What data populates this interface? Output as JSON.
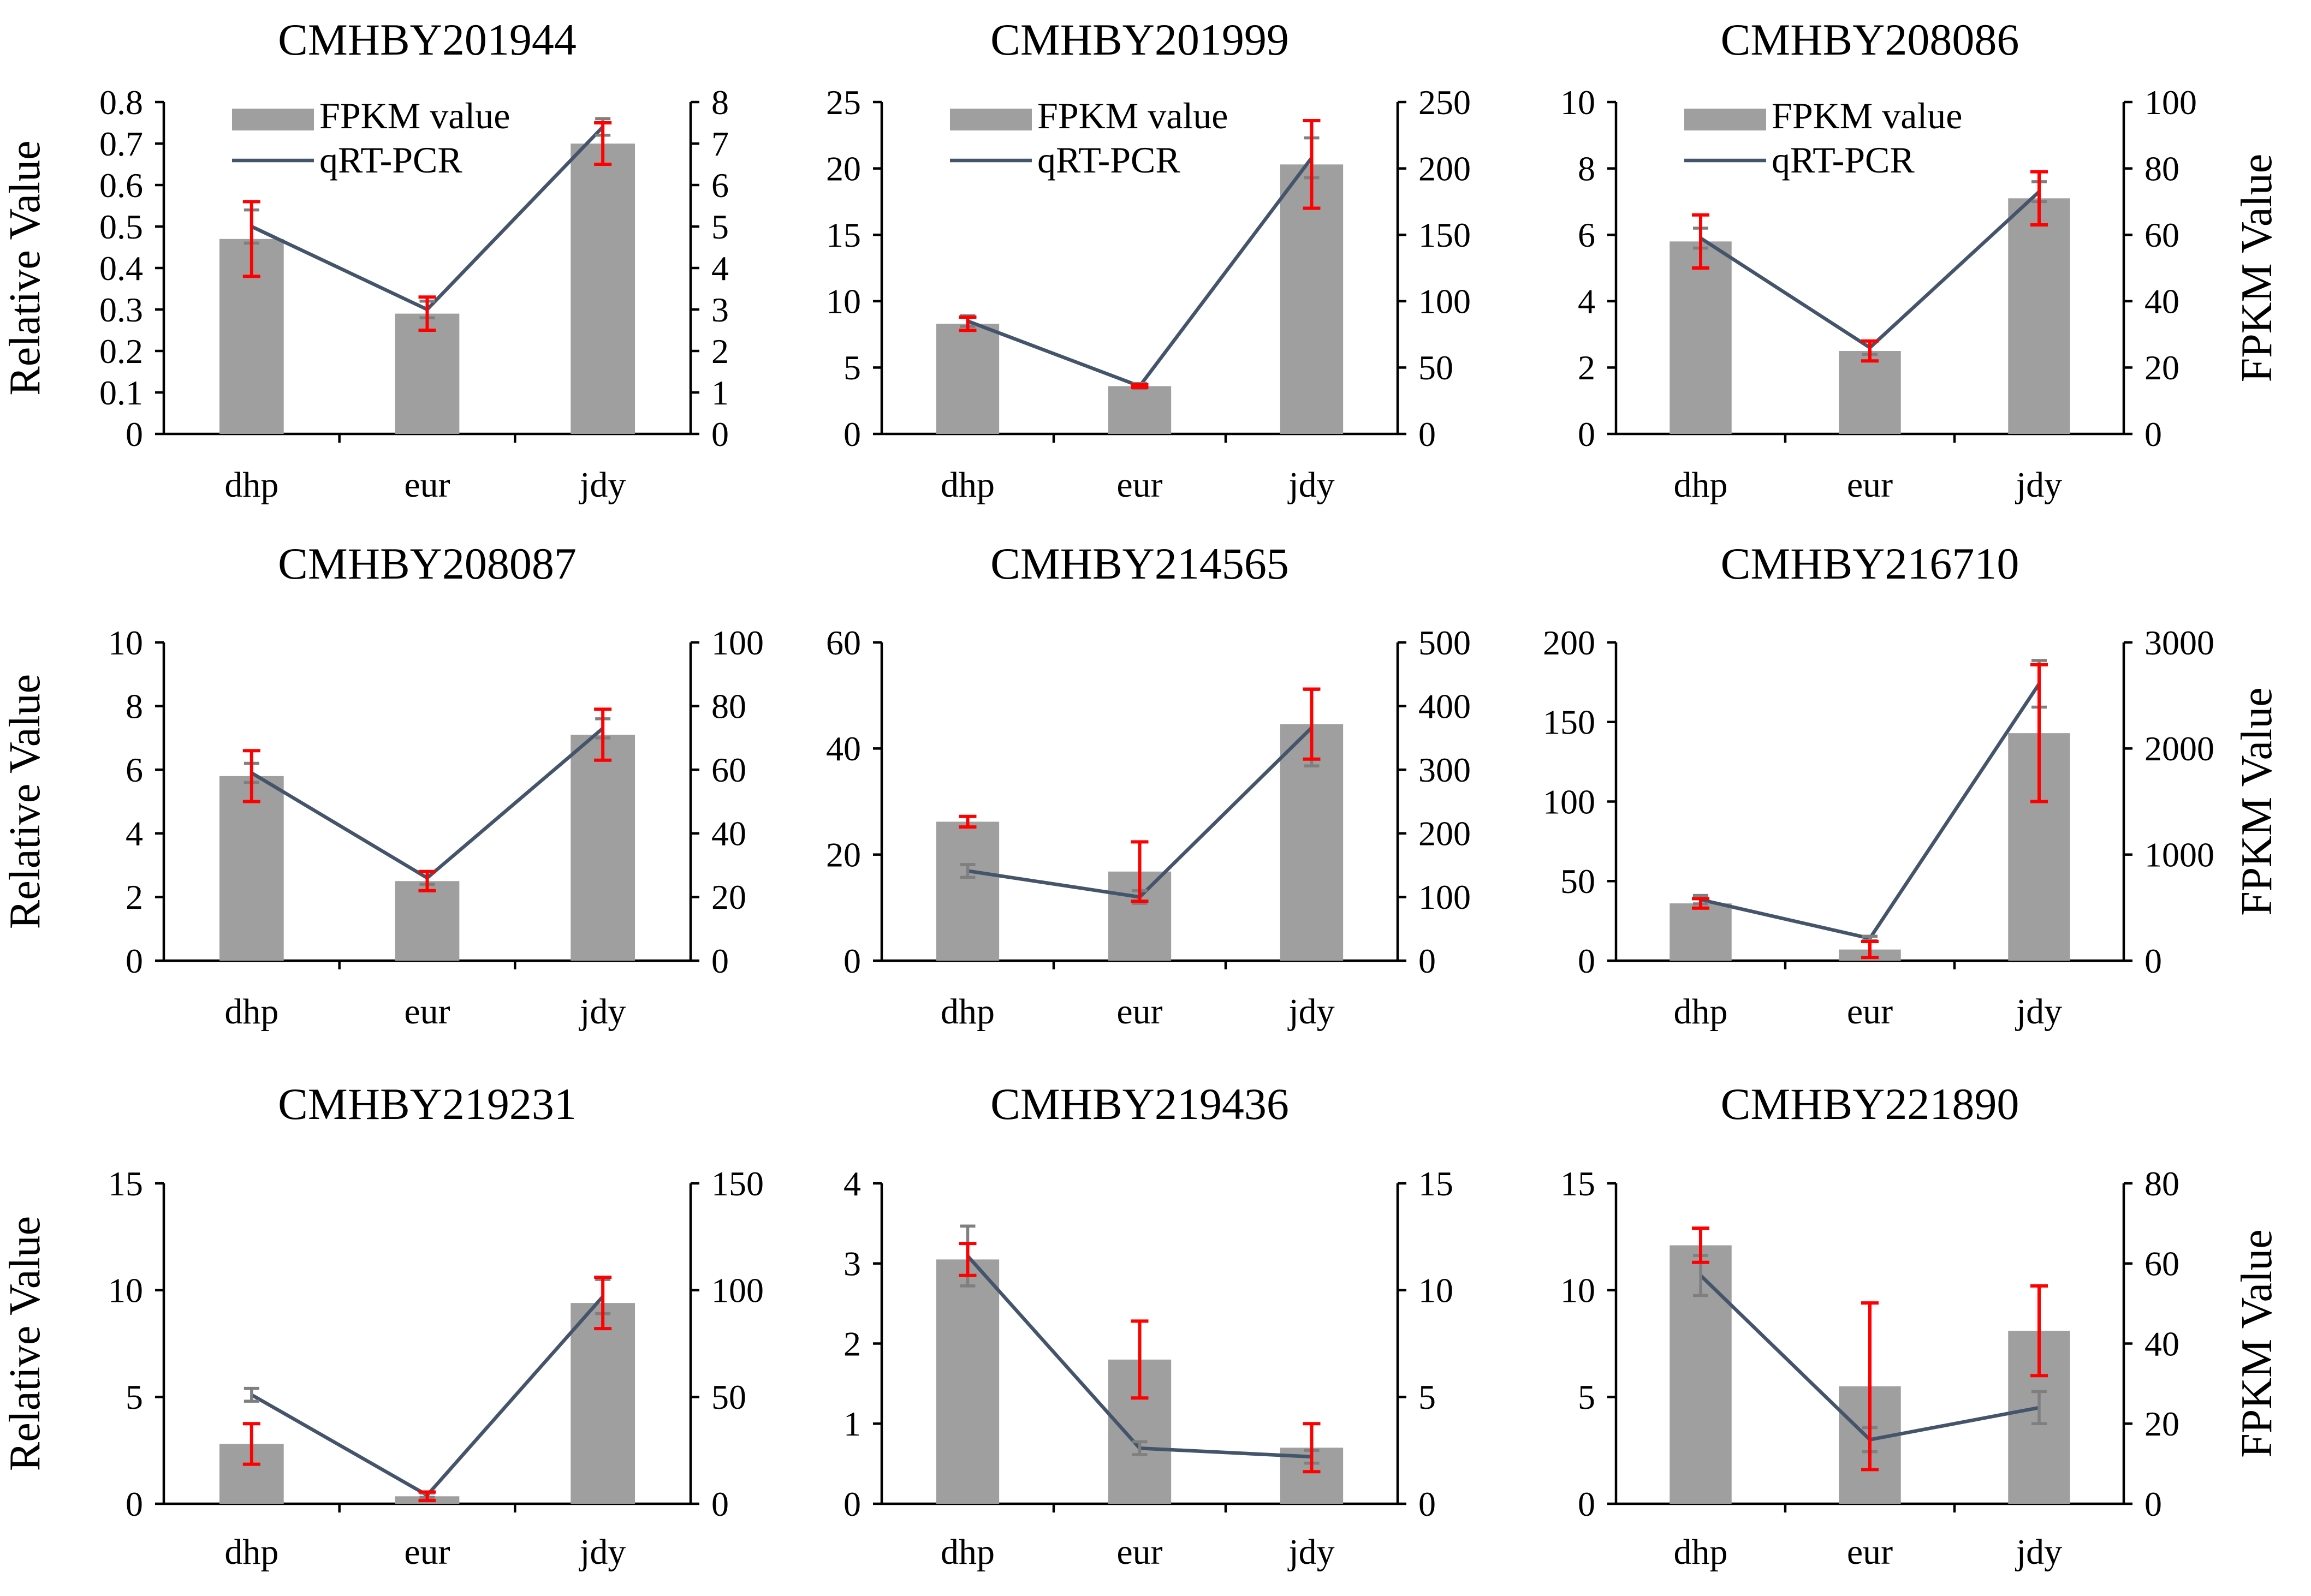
{
  "figure": {
    "y_label": "Relative Value",
    "y2_label": "FPKM Value",
    "legend": {
      "bar": "FPKM value",
      "line": "qRT-PCR"
    },
    "colors": {
      "bar": "#9f9f9f",
      "line": "#44546a",
      "bar_error": "#ff0000",
      "line_error": "#7f7f7f"
    }
  },
  "chart_data": [
    {
      "type": "bar+line",
      "title": "CMHBY201944",
      "categories": [
        "dhp",
        "eur",
        "jdy"
      ],
      "left_axis": {
        "min": 0,
        "max": 0.8,
        "ticks": [
          "0",
          "0.1",
          "0.2",
          "0.3",
          "0.4",
          "0.5",
          "0.6",
          "0.7",
          "0.8"
        ]
      },
      "right_axis": {
        "min": 0,
        "max": 8,
        "ticks": [
          "0",
          "1",
          "2",
          "3",
          "4",
          "5",
          "6",
          "7",
          "8"
        ]
      },
      "bars": {
        "name": "FPKM value",
        "axis": "left",
        "values": [
          0.47,
          0.29,
          0.7
        ],
        "errors": [
          0.09,
          0.04,
          0.05
        ]
      },
      "line": {
        "name": "qRT-PCR",
        "axis": "right",
        "values": [
          5.0,
          3.0,
          7.4
        ],
        "errors": [
          0.4,
          0.2,
          0.2
        ]
      },
      "show_legend": true,
      "show_y_label": true,
      "show_y2_label": false
    },
    {
      "type": "bar+line",
      "title": "CMHBY201999",
      "categories": [
        "dhp",
        "eur",
        "jdy"
      ],
      "left_axis": {
        "min": 0,
        "max": 25,
        "ticks": [
          "0",
          "5",
          "10",
          "15",
          "20",
          "25"
        ]
      },
      "right_axis": {
        "min": 0,
        "max": 250,
        "ticks": [
          "0",
          "50",
          "100",
          "150",
          "200",
          "250"
        ]
      },
      "bars": {
        "name": "FPKM value",
        "axis": "left",
        "values": [
          8.3,
          3.6,
          20.3
        ],
        "errors": [
          0.5,
          0.1,
          3.3
        ]
      },
      "line": {
        "name": "qRT-PCR",
        "axis": "right",
        "values": [
          85,
          36,
          208
        ],
        "errors": [
          4,
          2,
          15
        ]
      },
      "show_legend": true,
      "show_y_label": false,
      "show_y2_label": false
    },
    {
      "type": "bar+line",
      "title": "CMHBY208086",
      "categories": [
        "dhp",
        "eur",
        "jdy"
      ],
      "left_axis": {
        "min": 0,
        "max": 10,
        "ticks": [
          "0",
          "2",
          "4",
          "6",
          "8",
          "10"
        ]
      },
      "right_axis": {
        "min": 0,
        "max": 100,
        "ticks": [
          "0",
          "20",
          "40",
          "60",
          "80",
          "100"
        ]
      },
      "bars": {
        "name": "FPKM value",
        "axis": "left",
        "values": [
          5.8,
          2.5,
          7.1
        ],
        "errors": [
          0.8,
          0.3,
          0.8
        ]
      },
      "line": {
        "name": "qRT-PCR",
        "axis": "right",
        "values": [
          59,
          26,
          73
        ],
        "errors": [
          3,
          2,
          3
        ]
      },
      "show_legend": true,
      "show_y_label": false,
      "show_y2_label": true
    },
    {
      "type": "bar+line",
      "title": "CMHBY208087",
      "categories": [
        "dhp",
        "eur",
        "jdy"
      ],
      "left_axis": {
        "min": 0,
        "max": 10,
        "ticks": [
          "0",
          "2",
          "4",
          "6",
          "8",
          "10"
        ]
      },
      "right_axis": {
        "min": 0,
        "max": 100,
        "ticks": [
          "0",
          "20",
          "40",
          "60",
          "80",
          "100"
        ]
      },
      "bars": {
        "name": "FPKM value",
        "axis": "left",
        "values": [
          5.8,
          2.5,
          7.1
        ],
        "errors": [
          0.8,
          0.3,
          0.8
        ]
      },
      "line": {
        "name": "qRT-PCR",
        "axis": "right",
        "values": [
          59,
          26,
          73
        ],
        "errors": [
          3,
          2,
          3
        ]
      },
      "show_legend": false,
      "show_y_label": true,
      "show_y2_label": false
    },
    {
      "type": "bar+line",
      "title": "CMHBY214565",
      "categories": [
        "dhp",
        "eur",
        "jdy"
      ],
      "left_axis": {
        "min": 0,
        "max": 60,
        "ticks": [
          "0",
          "20",
          "40",
          "60"
        ]
      },
      "right_axis": {
        "min": 0,
        "max": 500,
        "ticks": [
          "0",
          "100",
          "200",
          "300",
          "400",
          "500"
        ]
      },
      "bars": {
        "name": "FPKM value",
        "axis": "left",
        "values": [
          26.2,
          16.8,
          44.6
        ],
        "errors": [
          1.0,
          5.6,
          6.6
        ]
      },
      "line": {
        "name": "qRT-PCR",
        "axis": "right",
        "values": [
          141,
          100,
          366
        ],
        "errors": [
          10,
          10,
          60
        ]
      },
      "show_legend": false,
      "show_y_label": false,
      "show_y2_label": false
    },
    {
      "type": "bar+line",
      "title": "CMHBY216710",
      "categories": [
        "dhp",
        "eur",
        "jdy"
      ],
      "left_axis": {
        "min": 0,
        "max": 200,
        "ticks": [
          "0",
          "50",
          "100",
          "150",
          "200"
        ]
      },
      "right_axis": {
        "min": 0,
        "max": 3000,
        "ticks": [
          "0",
          "1000",
          "2000",
          "3000"
        ]
      },
      "bars": {
        "name": "FPKM value",
        "axis": "left",
        "values": [
          36,
          7,
          143
        ],
        "errors": [
          3,
          5,
          43
        ]
      },
      "line": {
        "name": "qRT-PCR",
        "axis": "right",
        "values": [
          575,
          210,
          2610
        ],
        "errors": [
          40,
          20,
          220
        ]
      },
      "show_legend": false,
      "show_y_label": false,
      "show_y2_label": true
    },
    {
      "type": "bar+line",
      "title": "CMHBY219231",
      "categories": [
        "dhp",
        "eur",
        "jdy"
      ],
      "left_axis": {
        "min": 0,
        "max": 15,
        "ticks": [
          "0",
          "5",
          "10",
          "15"
        ]
      },
      "right_axis": {
        "min": 0,
        "max": 150,
        "ticks": [
          "0",
          "50",
          "100",
          "150"
        ]
      },
      "bars": {
        "name": "FPKM value",
        "axis": "left",
        "values": [
          2.8,
          0.35,
          9.4
        ],
        "errors": [
          0.95,
          0.2,
          1.2
        ]
      },
      "line": {
        "name": "qRT-PCR",
        "axis": "right",
        "values": [
          51,
          4,
          97
        ],
        "errors": [
          3,
          1,
          8
        ]
      },
      "show_legend": false,
      "show_y_label": true,
      "show_y2_label": false
    },
    {
      "type": "bar+line",
      "title": "CMHBY219436",
      "categories": [
        "dhp",
        "eur",
        "jdy"
      ],
      "left_axis": {
        "min": 0,
        "max": 4,
        "ticks": [
          "0",
          "1",
          "2",
          "3",
          "4"
        ]
      },
      "right_axis": {
        "min": 0,
        "max": 15,
        "ticks": [
          "0",
          "5",
          "10",
          "15"
        ]
      },
      "bars": {
        "name": "FPKM value",
        "axis": "left",
        "values": [
          3.05,
          1.8,
          0.7
        ],
        "errors": [
          0.2,
          0.48,
          0.3
        ]
      },
      "line": {
        "name": "qRT-PCR",
        "axis": "right",
        "values": [
          11.6,
          2.6,
          2.2
        ],
        "errors": [
          1.4,
          0.3,
          0.3
        ]
      },
      "show_legend": false,
      "show_y_label": false,
      "show_y2_label": false
    },
    {
      "type": "bar+line",
      "title": "CMHBY221890",
      "categories": [
        "dhp",
        "eur",
        "jdy"
      ],
      "left_axis": {
        "min": 0,
        "max": 15,
        "ticks": [
          "0",
          "5",
          "10",
          "15"
        ]
      },
      "right_axis": {
        "min": 0,
        "max": 80,
        "ticks": [
          "0",
          "20",
          "40",
          "60",
          "80"
        ]
      },
      "bars": {
        "name": "FPKM value",
        "axis": "left",
        "values": [
          12.1,
          5.5,
          8.1
        ],
        "errors": [
          0.8,
          3.9,
          2.1
        ]
      },
      "line": {
        "name": "qRT-PCR",
        "axis": "right",
        "values": [
          57,
          16,
          24
        ],
        "errors": [
          5,
          3,
          4
        ]
      },
      "show_legend": false,
      "show_y_label": false,
      "show_y2_label": true
    }
  ]
}
